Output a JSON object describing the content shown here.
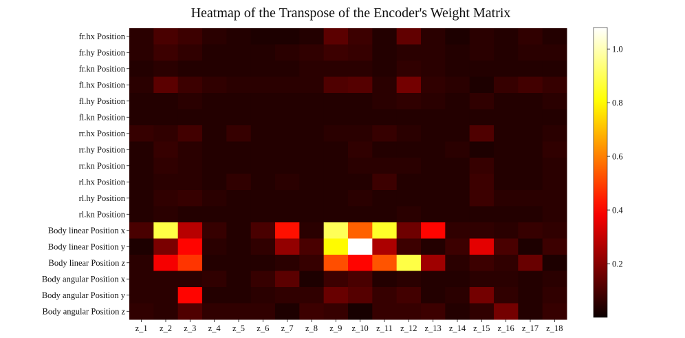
{
  "chart_data": {
    "type": "heatmap",
    "title": "Heatmap of the Transpose of the Encoder's Weight Matrix",
    "xlabel": "",
    "ylabel": "",
    "colormap": "hot",
    "vmin": 0.0,
    "vmax": 1.08,
    "x_categories": [
      "z_1",
      "z_2",
      "z_3",
      "z_4",
      "z_5",
      "z_6",
      "z_7",
      "z_8",
      "z_9",
      "z_10",
      "z_11",
      "z_12",
      "z_13",
      "z_14",
      "z_15",
      "z_16",
      "z_17",
      "z_18"
    ],
    "y_categories": [
      "fr.hx Position",
      "fr.hy Position",
      "fr.kn Position",
      "fl.hx Position",
      "fl.hy Position",
      "fl.kn Position",
      "rr.hx Position",
      "rr.hy Position",
      "rr.kn Position",
      "rl.hx Position",
      "rl.hy Position",
      "rl.kn Position",
      "Body linear Position x",
      "Body linear Position y",
      "Body linear Position z",
      "Body angular Position x",
      "Body angular Position y",
      "Body angular Position z"
    ],
    "values": [
      [
        0.05,
        0.1,
        0.08,
        0.05,
        0.04,
        0.03,
        0.03,
        0.04,
        0.13,
        0.08,
        0.04,
        0.14,
        0.05,
        0.03,
        0.05,
        0.04,
        0.06,
        0.04
      ],
      [
        0.05,
        0.08,
        0.06,
        0.04,
        0.04,
        0.04,
        0.05,
        0.06,
        0.08,
        0.07,
        0.04,
        0.05,
        0.05,
        0.04,
        0.05,
        0.04,
        0.05,
        0.05
      ],
      [
        0.04,
        0.05,
        0.04,
        0.04,
        0.04,
        0.04,
        0.04,
        0.05,
        0.05,
        0.05,
        0.04,
        0.06,
        0.05,
        0.04,
        0.04,
        0.04,
        0.04,
        0.04
      ],
      [
        0.05,
        0.13,
        0.08,
        0.06,
        0.05,
        0.05,
        0.05,
        0.05,
        0.11,
        0.12,
        0.05,
        0.17,
        0.06,
        0.05,
        0.03,
        0.07,
        0.09,
        0.07
      ],
      [
        0.04,
        0.04,
        0.05,
        0.04,
        0.04,
        0.04,
        0.04,
        0.04,
        0.04,
        0.04,
        0.05,
        0.06,
        0.05,
        0.04,
        0.06,
        0.04,
        0.04,
        0.05
      ],
      [
        0.04,
        0.04,
        0.04,
        0.04,
        0.04,
        0.04,
        0.04,
        0.04,
        0.04,
        0.04,
        0.04,
        0.04,
        0.04,
        0.04,
        0.04,
        0.04,
        0.04,
        0.04
      ],
      [
        0.07,
        0.06,
        0.09,
        0.04,
        0.07,
        0.04,
        0.04,
        0.04,
        0.05,
        0.05,
        0.07,
        0.05,
        0.04,
        0.04,
        0.11,
        0.04,
        0.04,
        0.05
      ],
      [
        0.04,
        0.07,
        0.05,
        0.04,
        0.04,
        0.04,
        0.04,
        0.04,
        0.04,
        0.06,
        0.04,
        0.04,
        0.04,
        0.05,
        0.03,
        0.04,
        0.04,
        0.06
      ],
      [
        0.04,
        0.06,
        0.05,
        0.04,
        0.04,
        0.04,
        0.04,
        0.04,
        0.04,
        0.05,
        0.05,
        0.05,
        0.04,
        0.04,
        0.07,
        0.04,
        0.04,
        0.05
      ],
      [
        0.04,
        0.05,
        0.05,
        0.04,
        0.06,
        0.04,
        0.05,
        0.04,
        0.04,
        0.04,
        0.08,
        0.04,
        0.04,
        0.04,
        0.08,
        0.04,
        0.04,
        0.05
      ],
      [
        0.04,
        0.06,
        0.07,
        0.05,
        0.04,
        0.04,
        0.04,
        0.04,
        0.04,
        0.05,
        0.04,
        0.04,
        0.04,
        0.04,
        0.08,
        0.05,
        0.05,
        0.05
      ],
      [
        0.04,
        0.05,
        0.04,
        0.04,
        0.04,
        0.04,
        0.04,
        0.04,
        0.04,
        0.04,
        0.04,
        0.05,
        0.04,
        0.04,
        0.04,
        0.04,
        0.04,
        0.05
      ],
      [
        0.1,
        0.88,
        0.28,
        0.07,
        0.04,
        0.1,
        0.42,
        0.05,
        0.9,
        0.55,
        0.85,
        0.16,
        0.4,
        0.06,
        0.06,
        0.05,
        0.07,
        0.06
      ],
      [
        0.03,
        0.18,
        0.4,
        0.05,
        0.04,
        0.06,
        0.22,
        0.1,
        0.8,
        1.08,
        0.26,
        0.08,
        0.04,
        0.08,
        0.35,
        0.1,
        0.03,
        0.08
      ],
      [
        0.05,
        0.38,
        0.48,
        0.04,
        0.04,
        0.04,
        0.05,
        0.07,
        0.52,
        0.4,
        0.53,
        0.88,
        0.24,
        0.05,
        0.08,
        0.06,
        0.15,
        0.03
      ],
      [
        0.05,
        0.05,
        0.05,
        0.06,
        0.04,
        0.07,
        0.13,
        0.03,
        0.08,
        0.1,
        0.04,
        0.05,
        0.04,
        0.04,
        0.05,
        0.05,
        0.04,
        0.05
      ],
      [
        0.05,
        0.05,
        0.4,
        0.04,
        0.04,
        0.05,
        0.06,
        0.06,
        0.15,
        0.12,
        0.07,
        0.09,
        0.04,
        0.05,
        0.17,
        0.06,
        0.04,
        0.06
      ],
      [
        0.06,
        0.05,
        0.11,
        0.06,
        0.06,
        0.06,
        0.03,
        0.08,
        0.07,
        0.02,
        0.07,
        0.07,
        0.08,
        0.04,
        0.06,
        0.17,
        0.04,
        0.07
      ]
    ],
    "colorbar_ticks": [
      0.2,
      0.4,
      0.6,
      0.8,
      1.0
    ],
    "colorbar_ticklabels": [
      "0.2",
      "0.4",
      "0.6",
      "0.8",
      "1.0"
    ],
    "grid": false,
    "legend": "none"
  }
}
